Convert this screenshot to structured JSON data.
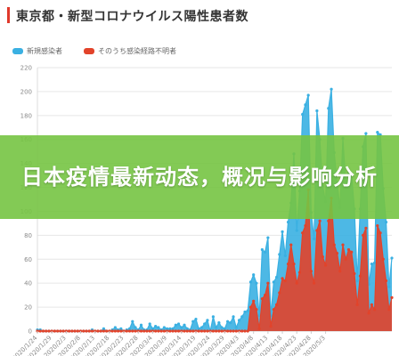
{
  "page": {
    "title": "東京都・新型コロナウイルス陽性患者数",
    "overlay_title": "日本疫情最新动态，概况与影响分析",
    "accent_color": "#e0392b",
    "overlay_color": "#76c442"
  },
  "chart_data": {
    "type": "area",
    "title": "東京都・新型コロナウイルス陽性患者数",
    "xlabel": "",
    "ylabel": "",
    "ylim": [
      0,
      220
    ],
    "yticks": [
      0,
      20,
      40,
      60,
      80,
      100,
      120,
      140,
      160,
      180,
      200,
      220
    ],
    "x_tick_labels": [
      "2020/1/24",
      "2020/1/29",
      "2020/2/3",
      "2020/2/8",
      "2020/2/13",
      "2020/2/18",
      "2020/2/23",
      "2020/2/28",
      "2020/3/4",
      "2020/3/9",
      "2020/3/14",
      "2020/3/19",
      "2020/3/24",
      "2020/3/29",
      "2020/4/3",
      "2020/4/8",
      "2020/4/13",
      "2020/4/18",
      "2020/4/23",
      "2020/4/28",
      "2020/5/3"
    ],
    "grid": true,
    "legend_position": "top-left",
    "series": [
      {
        "name": "新規感染者",
        "color": "#3ab0e2",
        "values": [
          1,
          1,
          0,
          0,
          0,
          0,
          0,
          0,
          0,
          0,
          0,
          0,
          0,
          0,
          0,
          0,
          0,
          0,
          0,
          1,
          0,
          0,
          0,
          2,
          0,
          0,
          1,
          3,
          1,
          2,
          0,
          1,
          2,
          8,
          3,
          1,
          5,
          1,
          1,
          6,
          2,
          4,
          3,
          1,
          3,
          2,
          2,
          2,
          5,
          6,
          3,
          5,
          2,
          1,
          8,
          10,
          2,
          3,
          6,
          9,
          0,
          12,
          3,
          7,
          3,
          2,
          8,
          7,
          12,
          3,
          9,
          12,
          16,
          17,
          41,
          47,
          40,
          13,
          68,
          66,
          78,
          13,
          41,
          45,
          64,
          83,
          63,
          91,
          107,
          148,
          84,
          117,
          181,
          189,
          197,
          99,
          77,
          184,
          160,
          121,
          108,
          186,
          202,
          149,
          124,
          103,
          161,
          123,
          132,
          131,
          102,
          42,
          102,
          154,
          165,
          39,
          56,
          57,
          166,
          164,
          119,
          91,
          37,
          61
        ]
      },
      {
        "name": "そのうち感染経路不明者",
        "color": "#e2432a",
        "values": [
          0,
          0,
          0,
          0,
          0,
          0,
          0,
          0,
          0,
          0,
          0,
          0,
          0,
          0,
          0,
          0,
          0,
          0,
          0,
          0,
          0,
          0,
          0,
          0,
          0,
          0,
          0,
          0,
          0,
          0,
          0,
          0,
          0,
          0,
          0,
          0,
          0,
          0,
          0,
          0,
          0,
          0,
          0,
          0,
          0,
          0,
          0,
          0,
          0,
          0,
          0,
          0,
          0,
          0,
          0,
          0,
          0,
          0,
          0,
          0,
          0,
          0,
          0,
          0,
          0,
          0,
          0,
          0,
          0,
          0,
          0,
          0,
          0,
          0,
          20,
          25,
          18,
          2,
          27,
          30,
          40,
          4,
          18,
          22,
          32,
          44,
          42,
          56,
          72,
          56,
          40,
          49,
          82,
          88,
          118,
          50,
          40,
          84,
          92,
          62,
          55,
          92,
          111,
          72,
          65,
          50,
          72,
          60,
          68,
          66,
          48,
          22,
          46,
          80,
          86,
          15,
          22,
          18,
          88,
          82,
          60,
          42,
          18,
          28
        ]
      }
    ]
  }
}
